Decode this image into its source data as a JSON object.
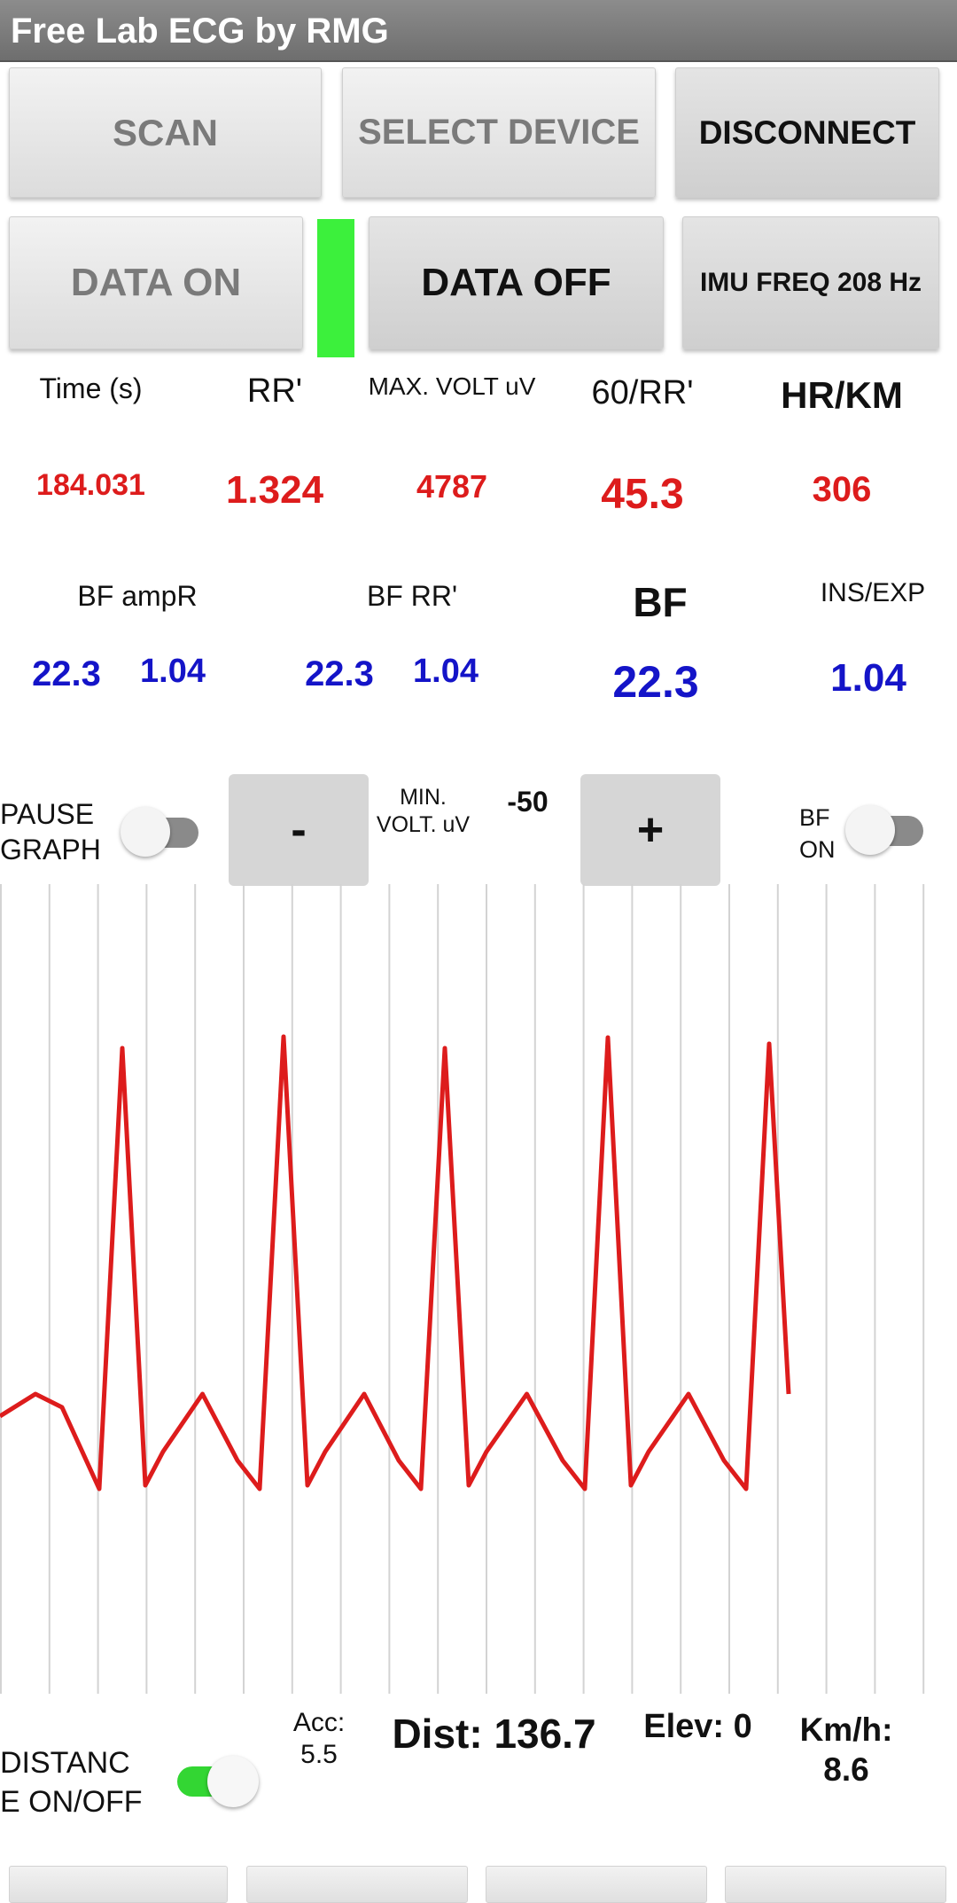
{
  "app": {
    "title": "Free Lab ECG by RMG"
  },
  "buttons": {
    "scan": "SCAN",
    "select_device": "SELECT DEVICE",
    "disconnect": "DISCONNECT",
    "data_on": "DATA ON",
    "data_off": "DATA OFF",
    "imu_freq": "IMU FREQ 208 Hz"
  },
  "stats": {
    "headers": [
      "Time (s)",
      "RR'",
      "MAX. VOLT uV",
      "60/RR'",
      "HR/KM"
    ],
    "values": [
      "184.031",
      "1.324",
      "4787",
      "45.3",
      "306"
    ]
  },
  "breathing": {
    "bf_ampr_label": "BF ampR",
    "bf_rr_label": "BF RR'",
    "bf_label": "BF",
    "ins_exp_label": "INS/EXP",
    "bf_ampr_value": "22.3",
    "bf_ampr_ratio": "1.04",
    "bf_rr_value": "22.3",
    "bf_rr_ratio": "1.04",
    "bf_value": "22.3",
    "ins_exp_value": "1.04"
  },
  "controls": {
    "pause_graph_line1": "PAUSE",
    "pause_graph_line2": "GRAPH",
    "pause_graph_on": false,
    "minus": "-",
    "min_volt_line1": "MIN.",
    "min_volt_line2": "VOLT. uV",
    "min_volt_value": "-50",
    "plus": "+",
    "bf_on_line1": "BF",
    "bf_on_line2": "ON",
    "bf_on": false
  },
  "chart_data": {
    "type": "line",
    "series": [
      {
        "color": "#dd1c1c"
      }
    ],
    "beats": 5,
    "grid": "vertical"
  },
  "footer": {
    "acc_label": "Acc:",
    "acc_value": "5.5",
    "dist": "Dist: 136.7",
    "elev": "Elev: 0",
    "kmh_label": "Km/h:",
    "kmh_value": "8.6",
    "distance_line1": "DISTANC",
    "distance_line2": "E ON/OFF",
    "distance_on": true
  },
  "colors": {
    "accent_green": "#3cf03c",
    "value_red": "#dd1c1c",
    "value_blue": "#1414c8"
  }
}
